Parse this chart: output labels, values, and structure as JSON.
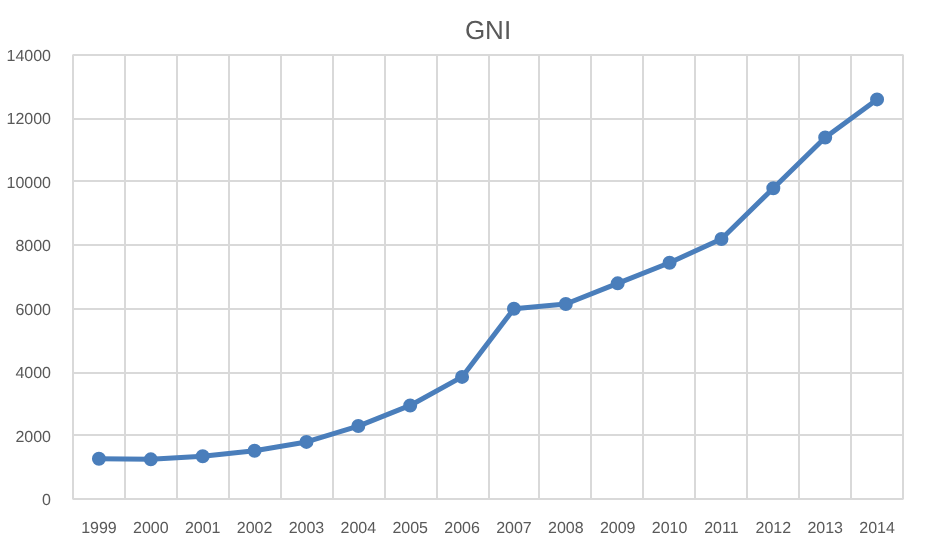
{
  "chart_data": {
    "type": "line",
    "title": "GNI",
    "categories": [
      "1999",
      "2000",
      "2001",
      "2002",
      "2003",
      "2004",
      "2005",
      "2006",
      "2007",
      "2008",
      "2009",
      "2010",
      "2011",
      "2012",
      "2013",
      "2014"
    ],
    "series": [
      {
        "color": "#4a7ebb",
        "values": [
          1270,
          1250,
          1350,
          1520,
          1800,
          2300,
          2950,
          3850,
          6000,
          6150,
          6800,
          7450,
          8200,
          9800,
          11400,
          12600
        ]
      }
    ],
    "ylim": [
      0,
      14000
    ],
    "yticks": [
      0,
      2000,
      4000,
      6000,
      8000,
      10000,
      12000,
      14000
    ],
    "grid": true,
    "marker": "circle",
    "line_style": "solid"
  }
}
